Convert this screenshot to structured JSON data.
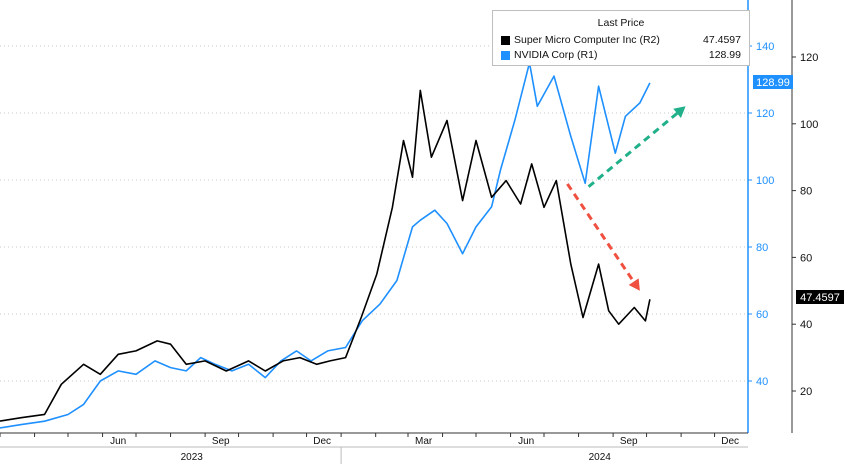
{
  "legend": {
    "title": "Last Price",
    "items": [
      {
        "name": "Super Micro Computer Inc  (R2)",
        "value": "47.4597",
        "color": "#000000"
      },
      {
        "name": "NVIDIA Corp  (R1)",
        "value": "128.99",
        "color": "#1e90ff"
      }
    ]
  },
  "price_tags": {
    "nvda": "128.99",
    "smci": "47.4597"
  },
  "chart_data": {
    "type": "line",
    "x_tick_labels": [
      "Jun",
      "Sep",
      "Dec",
      "Mar",
      "Jun",
      "Sep",
      "Dec"
    ],
    "year_labels": [
      "2023",
      "2024"
    ],
    "y_axis_r1": {
      "ticks": [
        40,
        60,
        80,
        100,
        120,
        140
      ],
      "color": "#1e90ff"
    },
    "y_axis_r2": {
      "ticks": [
        20,
        40,
        60,
        80,
        100,
        120
      ],
      "color": "#000000"
    },
    "grid": "horizontal dotted",
    "legend_position": "top-right",
    "x_range": [
      "2023-03-01",
      "2024-12-31"
    ],
    "series": [
      {
        "name": "NVIDIA Corp  (R1)",
        "axis": "R1",
        "color": "#1e90ff",
        "last": 128.99,
        "points": [
          [
            "2023-03-01",
            26
          ],
          [
            "2023-03-20",
            27
          ],
          [
            "2023-04-10",
            28
          ],
          [
            "2023-05-01",
            30
          ],
          [
            "2023-05-15",
            33
          ],
          [
            "2023-05-30",
            40
          ],
          [
            "2023-06-15",
            43
          ],
          [
            "2023-07-01",
            42
          ],
          [
            "2023-07-18",
            46
          ],
          [
            "2023-08-01",
            44
          ],
          [
            "2023-08-15",
            43
          ],
          [
            "2023-08-28",
            47
          ],
          [
            "2023-09-10",
            45
          ],
          [
            "2023-09-25",
            43
          ],
          [
            "2023-10-10",
            45
          ],
          [
            "2023-10-25",
            41
          ],
          [
            "2023-11-08",
            46
          ],
          [
            "2023-11-22",
            49
          ],
          [
            "2023-12-05",
            46
          ],
          [
            "2023-12-20",
            49
          ],
          [
            "2024-01-05",
            50
          ],
          [
            "2024-01-20",
            58
          ],
          [
            "2024-02-05",
            63
          ],
          [
            "2024-02-20",
            70
          ],
          [
            "2024-03-05",
            86
          ],
          [
            "2024-03-12",
            88
          ],
          [
            "2024-03-25",
            91
          ],
          [
            "2024-04-05",
            87
          ],
          [
            "2024-04-19",
            78
          ],
          [
            "2024-05-01",
            86
          ],
          [
            "2024-05-15",
            92
          ],
          [
            "2024-05-23",
            103
          ],
          [
            "2024-06-05",
            118
          ],
          [
            "2024-06-18",
            135
          ],
          [
            "2024-06-25",
            122
          ],
          [
            "2024-07-10",
            131
          ],
          [
            "2024-07-25",
            113
          ],
          [
            "2024-08-07",
            99
          ],
          [
            "2024-08-19",
            128
          ],
          [
            "2024-09-03",
            108
          ],
          [
            "2024-09-12",
            119
          ],
          [
            "2024-09-25",
            123
          ],
          [
            "2024-10-04",
            128.99
          ]
        ]
      },
      {
        "name": "Super Micro Computer Inc  (R2)",
        "axis": "R2",
        "color": "#000000",
        "last": 47.4597,
        "points": [
          [
            "2023-03-01",
            11
          ],
          [
            "2023-03-20",
            12
          ],
          [
            "2023-04-10",
            13
          ],
          [
            "2023-04-25",
            22
          ],
          [
            "2023-05-15",
            28
          ],
          [
            "2023-05-30",
            25
          ],
          [
            "2023-06-15",
            31
          ],
          [
            "2023-07-01",
            32
          ],
          [
            "2023-07-20",
            35
          ],
          [
            "2023-08-01",
            34
          ],
          [
            "2023-08-15",
            28
          ],
          [
            "2023-09-01",
            29
          ],
          [
            "2023-09-20",
            26
          ],
          [
            "2023-10-10",
            29
          ],
          [
            "2023-10-25",
            26
          ],
          [
            "2023-11-10",
            29
          ],
          [
            "2023-11-25",
            30
          ],
          [
            "2023-12-10",
            28
          ],
          [
            "2023-12-22",
            29
          ],
          [
            "2024-01-05",
            30
          ],
          [
            "2024-01-19",
            42
          ],
          [
            "2024-02-02",
            55
          ],
          [
            "2024-02-16",
            75
          ],
          [
            "2024-02-26",
            95
          ],
          [
            "2024-03-05",
            84
          ],
          [
            "2024-03-12",
            110
          ],
          [
            "2024-03-22",
            90
          ],
          [
            "2024-04-05",
            101
          ],
          [
            "2024-04-19",
            77
          ],
          [
            "2024-05-01",
            95
          ],
          [
            "2024-05-15",
            78
          ],
          [
            "2024-05-28",
            83
          ],
          [
            "2024-06-10",
            76
          ],
          [
            "2024-06-20",
            88
          ],
          [
            "2024-07-01",
            75
          ],
          [
            "2024-07-12",
            83
          ],
          [
            "2024-07-25",
            58
          ],
          [
            "2024-08-05",
            42
          ],
          [
            "2024-08-19",
            58
          ],
          [
            "2024-08-28",
            44
          ],
          [
            "2024-09-06",
            40
          ],
          [
            "2024-09-20",
            45
          ],
          [
            "2024-09-30",
            41
          ],
          [
            "2024-10-04",
            47.46
          ]
        ]
      }
    ],
    "annotations": [
      {
        "type": "arrow",
        "color": "#20b08a",
        "style": "dashed",
        "from": [
          "2024-08-10",
          98
        ],
        "to": [
          "2024-11-05",
          122
        ],
        "axis": "R1"
      },
      {
        "type": "arrow",
        "color": "#f05040",
        "style": "dashed",
        "from": [
          "2024-07-22",
          82
        ],
        "to": [
          "2024-09-25",
          50
        ],
        "axis": "R2"
      }
    ]
  }
}
